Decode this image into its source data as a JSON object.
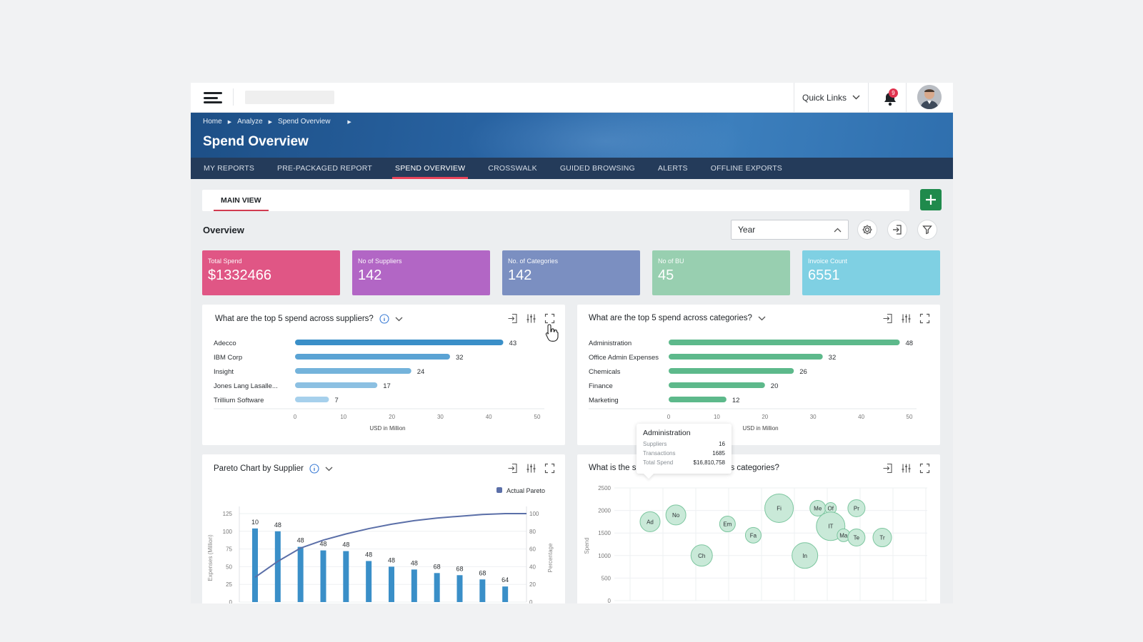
{
  "header": {
    "quick_links": "Quick Links",
    "notification_count": "9"
  },
  "breadcrumb": [
    "Home",
    "Analyze",
    "Spend Overview"
  ],
  "page_title": "Spend Overview",
  "nav_tabs": [
    {
      "label": "MY REPORTS"
    },
    {
      "label": "PRE-PACKAGED REPORT"
    },
    {
      "label": "SPEND OVERVIEW",
      "active": true
    },
    {
      "label": "CROSSWALK"
    },
    {
      "label": "GUIDED BROWSING"
    },
    {
      "label": "ALERTS"
    },
    {
      "label": "OFFLINE EXPORTS"
    }
  ],
  "view_tab": "MAIN VIEW",
  "overview": {
    "title": "Overview",
    "period_select": "Year"
  },
  "kpis": [
    {
      "label": "Total Spend",
      "value": "$1332466",
      "color": "#e05685"
    },
    {
      "label": "No of Suppliers",
      "value": "142",
      "color": "#b266c5"
    },
    {
      "label": "No. of Categories",
      "value": "142",
      "color": "#7b8fc1"
    },
    {
      "label": "No of BU",
      "value": "45",
      "color": "#98cfb0"
    },
    {
      "label": "Invoice Count",
      "value": "6551",
      "color": "#7fd0e3"
    }
  ],
  "colors": {
    "accent_red": "#e8435a",
    "add_button": "#1f8a4c",
    "supplier_bars": [
      "#3a8fc8",
      "#5aa3d4",
      "#74b3db",
      "#8cc0e2",
      "#a6d0ec"
    ],
    "category_bars": "#5db98b",
    "pareto_bars": "#3a8fc8",
    "pareto_line": "#5b6fa8",
    "bubble_fill": "#c9e9d8",
    "bubble_stroke": "#7cc69f"
  },
  "cards": {
    "suppliers": {
      "title": "What are the top 5 spend across suppliers?"
    },
    "categories": {
      "title": "What are the top 5 spend across categories?"
    },
    "pareto": {
      "title": "Pareto Chart by Supplier"
    },
    "bubble": {
      "title_left": "What is the s",
      "title_right": "s categories?"
    }
  },
  "tooltip": {
    "title": "Administration",
    "rows": [
      {
        "label": "Suppliers",
        "value": "16"
      },
      {
        "label": "Transactions",
        "value": "1685"
      },
      {
        "label": "Total Spend",
        "value": "$16,810,758"
      }
    ]
  },
  "chart_data": [
    {
      "type": "bar",
      "orientation": "horizontal",
      "title": "What are the top 5 spend across suppliers?",
      "categories": [
        "Adecco",
        "IBM Corp",
        "Insight",
        "Jones Lang Lasalle...",
        "Trillium Software"
      ],
      "values": [
        43,
        32,
        24,
        17,
        7
      ],
      "xlabel": "USD in Million",
      "xlim": [
        0,
        50
      ],
      "xticks": [
        0,
        10,
        20,
        30,
        40,
        50
      ]
    },
    {
      "type": "bar",
      "orientation": "horizontal",
      "title": "What are the top 5 spend across categories?",
      "categories": [
        "Administration",
        "Office Admin Expenses",
        "Chemicals",
        "Finance",
        "Marketing"
      ],
      "values": [
        48,
        32,
        26,
        20,
        12
      ],
      "xlabel": "USD in Million",
      "xlim": [
        0,
        50
      ],
      "xticks": [
        0,
        10,
        20,
        30,
        40,
        50
      ]
    },
    {
      "type": "bar",
      "title": "Pareto Chart by Supplier",
      "ylabel": "Expenses (Million)",
      "y2label": "Percentage",
      "legend": "Actual Pareto",
      "ylim": [
        0,
        125
      ],
      "yticks": [
        0,
        25,
        50,
        75,
        100,
        125
      ],
      "y2ticks": [
        0,
        20,
        40,
        60,
        80,
        100
      ],
      "values": [
        104,
        100,
        78,
        73,
        72,
        58,
        50,
        46,
        41,
        38,
        32,
        22
      ],
      "labels": [
        "10",
        "48",
        "48",
        "48",
        "48",
        "48",
        "48",
        "48",
        "68",
        "68",
        "68",
        "64"
      ],
      "line_percent": [
        28,
        46,
        61,
        70,
        77,
        83,
        88,
        92,
        95,
        97,
        99,
        100
      ]
    },
    {
      "type": "scatter",
      "ylabel": "Spend",
      "ylim": [
        0,
        2500
      ],
      "yticks": [
        0,
        500,
        1000,
        1500,
        2000,
        2500
      ],
      "points": [
        {
          "label": "Ad",
          "x": 1,
          "y": 1750,
          "r": 14
        },
        {
          "label": "No",
          "x": 2,
          "y": 1900,
          "r": 14
        },
        {
          "label": "Ch",
          "x": 3,
          "y": 1000,
          "r": 15
        },
        {
          "label": "Em",
          "x": 4,
          "y": 1700,
          "r": 11
        },
        {
          "label": "Fa",
          "x": 5,
          "y": 1450,
          "r": 11
        },
        {
          "label": "Fi",
          "x": 6,
          "y": 2050,
          "r": 20
        },
        {
          "label": "In",
          "x": 7,
          "y": 1000,
          "r": 18
        },
        {
          "label": "Me",
          "x": 7.5,
          "y": 2050,
          "r": 11
        },
        {
          "label": "Of",
          "x": 8,
          "y": 2050,
          "r": 8
        },
        {
          "label": "IT",
          "x": 8,
          "y": 1650,
          "r": 20
        },
        {
          "label": "Ma",
          "x": 8.5,
          "y": 1450,
          "r": 9
        },
        {
          "label": "Te",
          "x": 9,
          "y": 1400,
          "r": 12
        },
        {
          "label": "Pr",
          "x": 9,
          "y": 2050,
          "r": 12
        },
        {
          "label": "Tr",
          "x": 10,
          "y": 1400,
          "r": 13
        }
      ]
    }
  ]
}
